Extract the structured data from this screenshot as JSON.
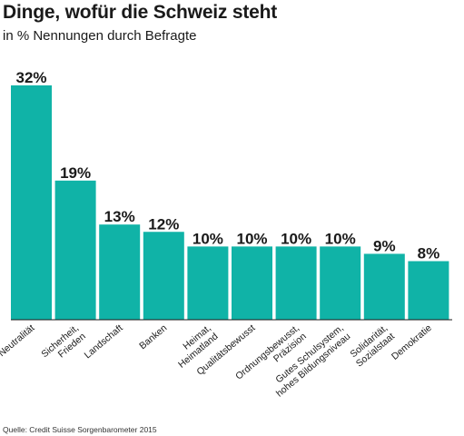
{
  "title": "Dinge, wofür die Schweiz steht",
  "subtitle": "in % Nennungen durch Befragte",
  "source": "Quelle: Credit Suisse Sorgenbarometer 2015",
  "colors": {
    "bar": "#10b3a7",
    "axis": "#1a1a1a"
  },
  "chart_data": {
    "type": "bar",
    "title": "Dinge, wofür die Schweiz steht",
    "subtitle": "in % Nennungen durch Befragte",
    "categories": [
      [
        "Neutralität"
      ],
      [
        "Sicherheit,",
        "Frieden"
      ],
      [
        "Landschaft"
      ],
      [
        "Banken"
      ],
      [
        "Heimat,",
        "Heimatland"
      ],
      [
        "Qualitätsbewusst"
      ],
      [
        "Ordnungsbewusst,",
        "Präzision"
      ],
      [
        "Gutes Schulsystem,",
        "hohes Bildungsniveau"
      ],
      [
        "Solidarität,",
        "Sozialstaat"
      ],
      [
        "Demokratie"
      ]
    ],
    "values": [
      32,
      19,
      13,
      12,
      10,
      10,
      10,
      10,
      9,
      8
    ],
    "value_labels": [
      "32%",
      "19%",
      "13%",
      "12%",
      "10%",
      "10%",
      "10%",
      "10%",
      "9%",
      "8%"
    ],
    "xlabel": "",
    "ylabel": "",
    "ylim": [
      0,
      32
    ]
  }
}
